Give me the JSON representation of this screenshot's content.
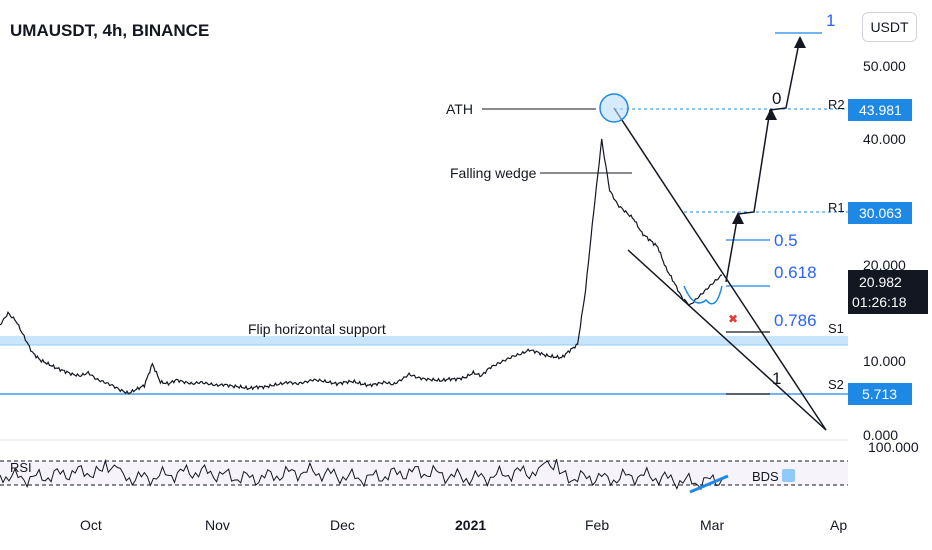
{
  "chart_data": {
    "type": "line",
    "title": "UMAUSDT, 4h, BINANCE",
    "unit_label": "USDT",
    "x_ticks": [
      "Oct",
      "Nov",
      "Dec",
      "2021",
      "Feb",
      "Mar",
      "Ap"
    ],
    "y_ticks": [
      "0.000",
      "10.000",
      "20.000",
      "40.000",
      "50.000"
    ],
    "y_range": [
      0,
      60
    ],
    "price_badges": [
      {
        "label": "43.981",
        "value": 43.981,
        "color": "#1e88e5"
      },
      {
        "label": "30.063",
        "value": 30.063,
        "color": "#1e88e5"
      },
      {
        "label": "20.982",
        "value": 20.982,
        "color": "#131722"
      },
      {
        "label": "01:26:18",
        "color": "#131722"
      },
      {
        "label": "5.713",
        "value": 5.713,
        "color": "#1e88e5"
      }
    ],
    "levels": [
      {
        "name": "R2",
        "value": 43.981
      },
      {
        "name": "R1",
        "value": 30.063
      },
      {
        "name": "S1",
        "value": 12.0
      },
      {
        "name": "S2",
        "value": 5.713
      }
    ],
    "fib_levels": [
      "1",
      "0",
      "0.5",
      "0.618",
      "0.786",
      "1"
    ],
    "annotations": [
      "ATH",
      "Falling wedge",
      "Flip horizontal support"
    ],
    "rsi": {
      "label": "RSI",
      "upper": "100.000",
      "indicator": "BDS"
    },
    "series": [
      {
        "values": [
          14.5,
          16.0,
          15.0,
          13.0,
          11.0,
          10.0,
          9.5,
          9.0,
          8.6,
          8.2,
          8.0,
          8.4,
          7.6,
          7.2,
          6.8,
          6.2,
          5.8,
          6.3,
          6.8,
          9.5,
          7.2,
          7.0,
          7.5,
          7.2,
          7.0,
          7.2,
          7.0,
          6.8,
          6.9,
          6.7,
          6.6,
          6.4,
          6.6,
          6.6,
          6.8,
          7.0,
          7.2,
          7.0,
          7.2,
          7.5,
          7.4,
          7.2,
          7.0,
          7.2,
          7.3,
          7.0,
          6.8,
          7.0,
          7.2,
          6.9,
          7.5,
          8.2,
          7.8,
          7.6,
          7.5,
          7.4,
          7.6,
          7.6,
          7.8,
          8.4,
          8.0,
          9.0,
          9.5,
          10.0,
          10.5,
          10.8,
          11.3,
          11.0,
          10.6,
          10.4,
          10.3,
          11.2,
          12.0,
          19.0,
          30.0,
          40.0,
          33.0,
          31.0,
          30.0,
          29.0,
          27.0,
          26.0,
          25.0,
          22.0,
          20.0,
          18.0,
          17.0,
          18.0,
          19.0,
          20.0,
          20.98
        ]
      }
    ]
  }
}
